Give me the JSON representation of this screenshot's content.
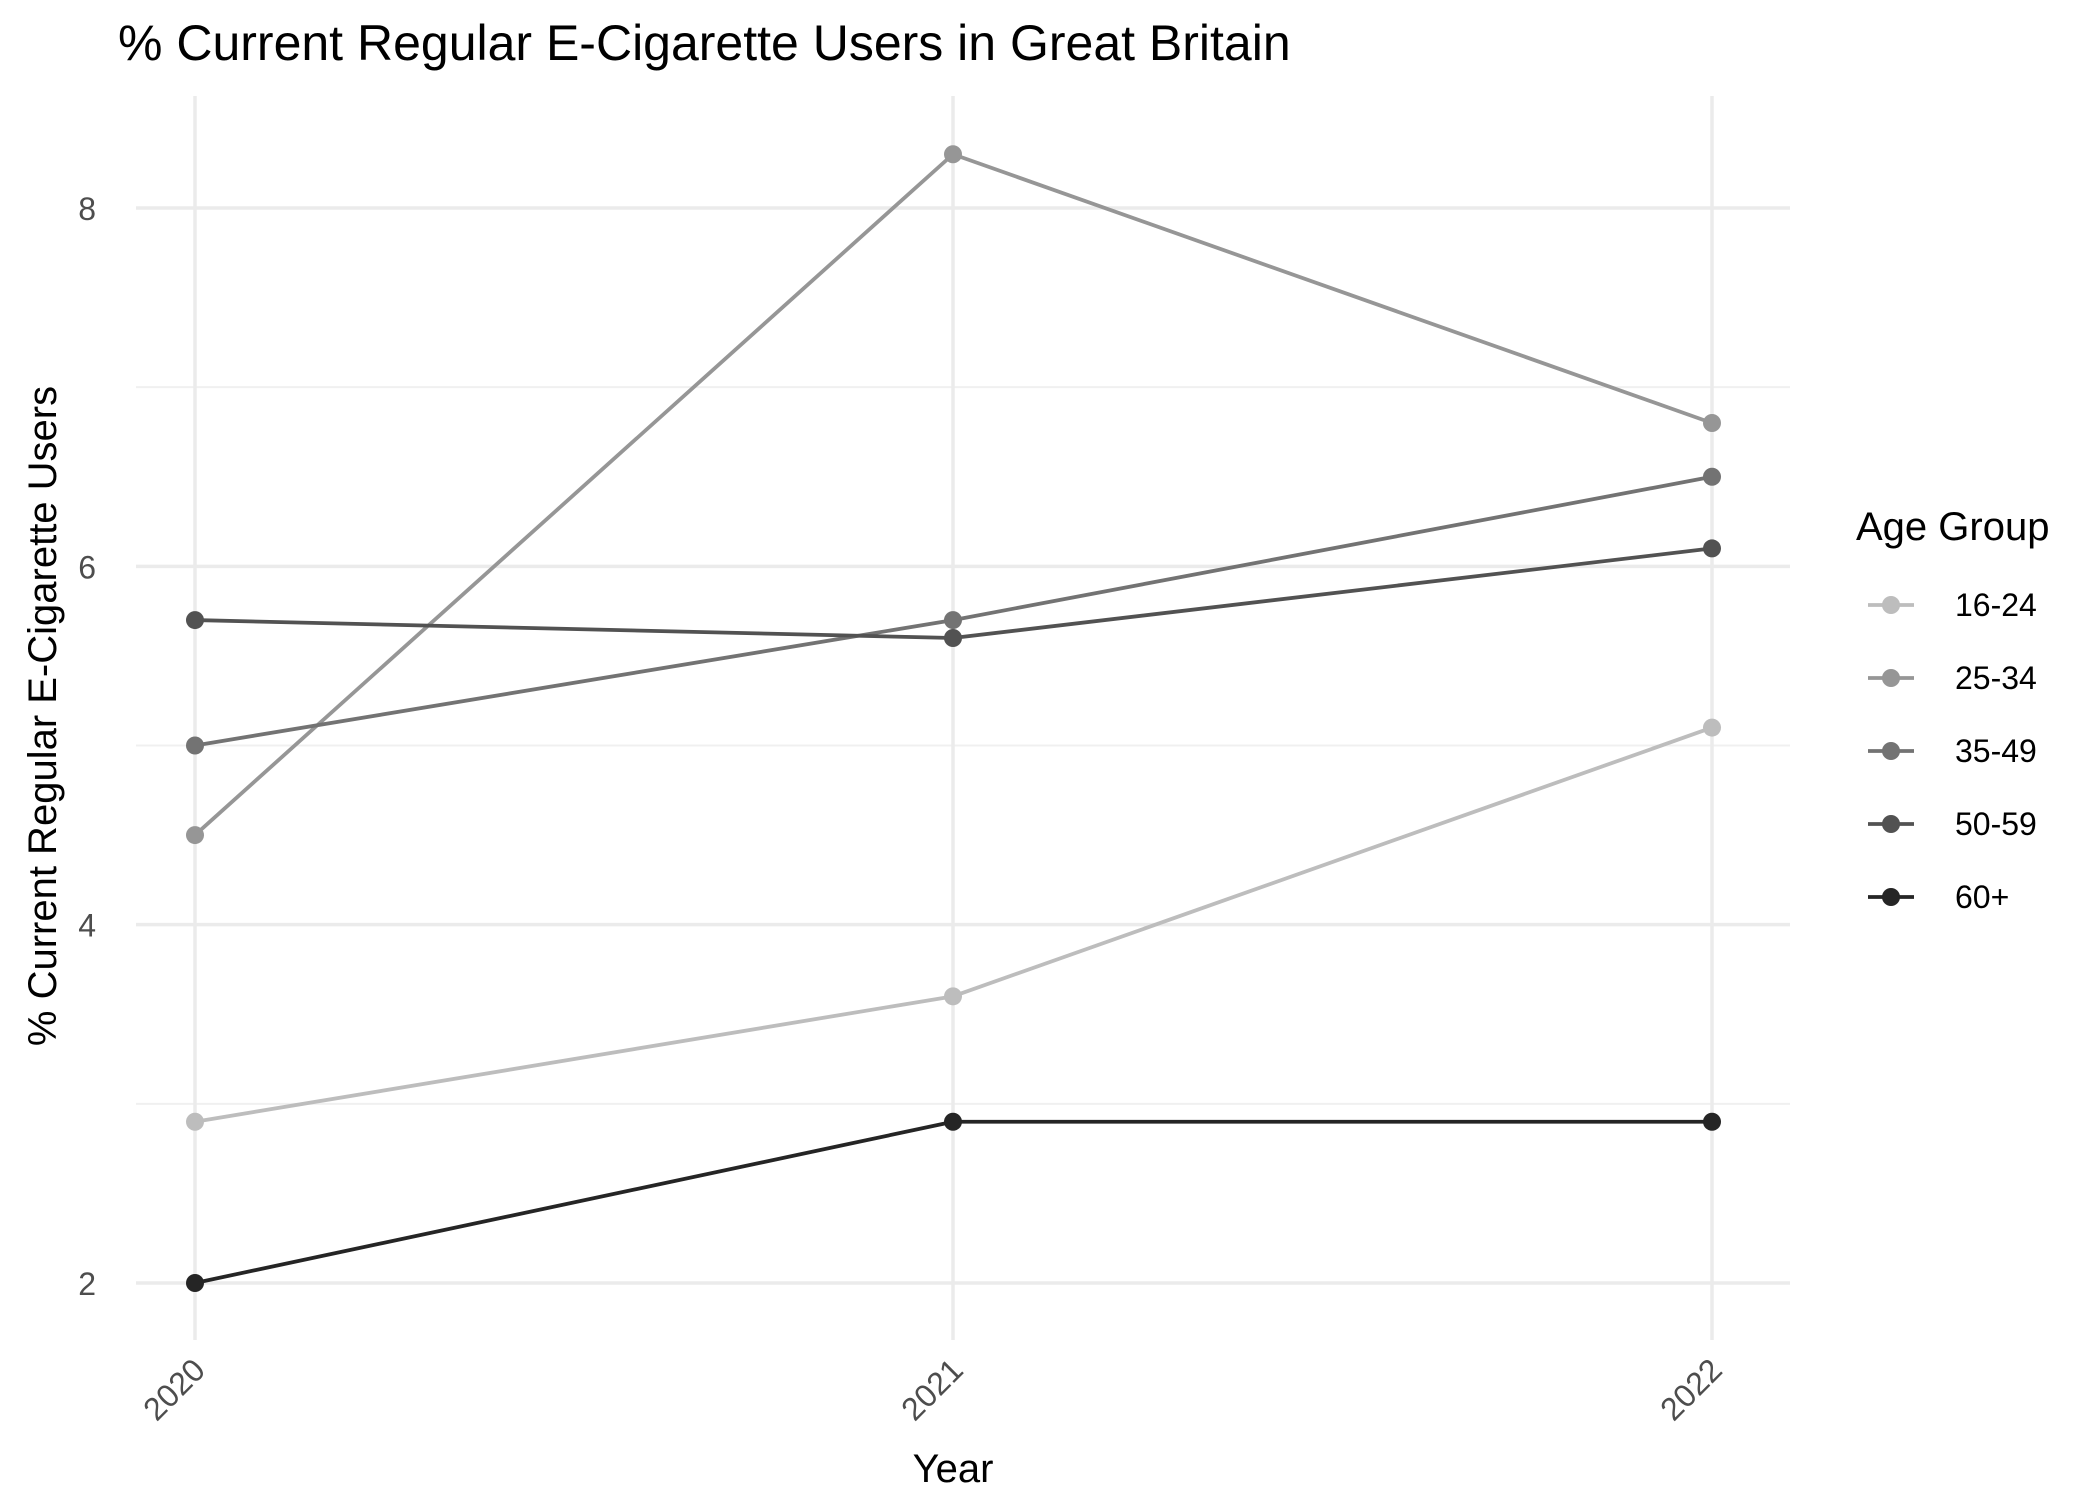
{
  "chart_data": {
    "type": "line",
    "title": "% Current Regular E-Cigarette Users in Great Britain",
    "xlabel": "Year",
    "ylabel": "% Current Regular E-Cigarette Users",
    "x": [
      "2020",
      "2021",
      "2022"
    ],
    "y_ticks": [
      2,
      4,
      6,
      8
    ],
    "ylim": [
      1.7,
      8.6
    ],
    "grid": true,
    "legend": {
      "title": "Age Group",
      "placement": "right"
    },
    "series": [
      {
        "name": "16-24",
        "color": "#bdbdbd",
        "values": [
          2.9,
          3.6,
          5.1
        ]
      },
      {
        "name": "25-34",
        "color": "#969696",
        "values": [
          4.5,
          8.3,
          6.8
        ]
      },
      {
        "name": "35-49",
        "color": "#737373",
        "values": [
          5.0,
          5.7,
          6.5
        ]
      },
      {
        "name": "50-59",
        "color": "#525252",
        "values": [
          5.7,
          5.6,
          6.1
        ]
      },
      {
        "name": "60+",
        "color": "#252525",
        "values": [
          2.0,
          2.9,
          2.9
        ]
      }
    ]
  }
}
